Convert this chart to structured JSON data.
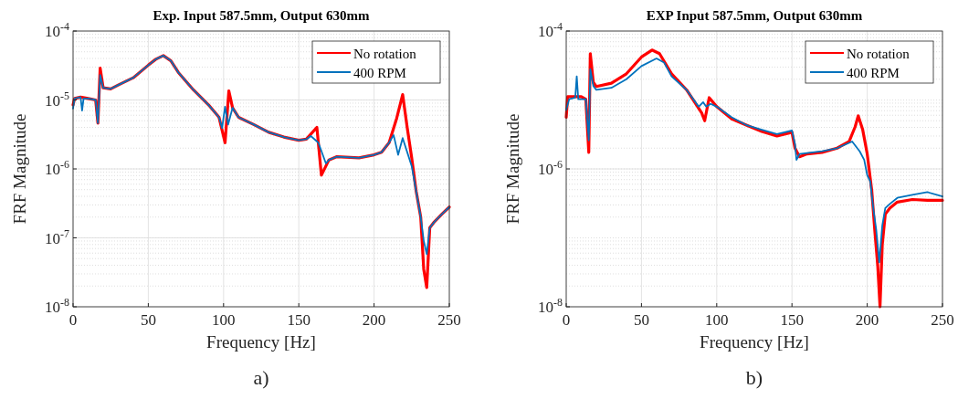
{
  "chart_data": [
    {
      "type": "line",
      "title": "Exp. Input 587.5mm, Output 630mm",
      "xlabel": "Frequency [Hz]",
      "ylabel": "FRF Magnitude",
      "annotations": [
        "a)"
      ],
      "log": "y",
      "grid": true,
      "legend": "top right",
      "line_style": "solid",
      "xlim": [
        0,
        250
      ],
      "ylim": [
        1e-08,
        0.0001
      ],
      "xticks": [
        0,
        50,
        100,
        150,
        200,
        250
      ],
      "yticks": [
        {
          "value": 1e-08,
          "label": "10$^{-8}$"
        },
        {
          "value": 1e-07,
          "label": "10$^{-7}$"
        },
        {
          "value": 1e-06,
          "label": "10$^{-6}$"
        },
        {
          "value": 1e-05,
          "label": "10$^{-5}$"
        },
        {
          "value": 0.0001,
          "label": "10$^{-4}$"
        }
      ],
      "series": [
        {
          "name": "No rotation",
          "color": "#ff0000",
          "x": [
            0,
            1,
            5,
            10,
            15,
            16.5,
            18,
            20,
            25,
            30,
            40,
            50,
            55,
            60,
            65,
            70,
            80,
            90,
            97,
            101,
            103.5,
            106,
            110,
            120,
            130,
            140,
            150,
            155,
            162,
            165,
            170,
            175,
            190,
            200,
            205,
            210,
            215,
            219,
            222,
            225,
            228,
            231,
            233,
            235,
            237,
            240,
            245,
            250
          ],
          "values": [
            8.5e-06,
            1.05e-05,
            1.1e-05,
            1.05e-05,
            1e-05,
            4.6e-06,
            2.9e-05,
            1.5e-05,
            1.45e-05,
            1.65e-05,
            2.1e-05,
            3.2e-05,
            3.9e-05,
            4.4e-05,
            3.7e-05,
            2.5e-05,
            1.4e-05,
            8.5e-06,
            5.6e-06,
            2.4e-06,
            1.35e-05,
            7.7e-06,
            5.6e-06,
            4.4e-06,
            3.4e-06,
            2.9e-06,
            2.6e-06,
            2.7e-06,
            4e-06,
            8.1e-07,
            1.35e-06,
            1.5e-06,
            1.45e-06,
            1.6e-06,
            1.75e-06,
            2.4e-06,
            5.4e-06,
            1.2e-05,
            4e-06,
            1.45e-06,
            4.7e-07,
            2e-07,
            3.5e-08,
            1.9e-08,
            1.4e-07,
            1.7e-07,
            2.2e-07,
            2.8e-07
          ]
        },
        {
          "name": "400 RPM",
          "color": "#0072bd",
          "x": [
            0,
            1,
            5,
            6,
            7,
            10,
            15,
            16.5,
            18,
            20,
            25,
            30,
            40,
            50,
            55,
            60,
            65,
            70,
            80,
            90,
            97,
            99,
            101,
            103,
            106,
            110,
            120,
            130,
            140,
            150,
            155,
            158,
            163,
            168,
            170,
            175,
            190,
            200,
            205,
            210,
            213,
            216,
            219,
            225,
            228,
            231,
            233,
            235,
            237,
            240,
            245,
            250
          ],
          "values": [
            7.5e-06,
            1.05e-05,
            1.1e-05,
            7e-06,
            1.05e-05,
            1.05e-05,
            1e-05,
            4.6e-06,
            2.3e-05,
            1.5e-05,
            1.45e-05,
            1.65e-05,
            2.1e-05,
            3.2e-05,
            3.9e-05,
            4.4e-05,
            3.7e-05,
            2.5e-05,
            1.4e-05,
            8.5e-06,
            5.6e-06,
            3.9e-06,
            8e-06,
            4.4e-06,
            7.7e-06,
            5.6e-06,
            4.4e-06,
            3.4e-06,
            2.9e-06,
            2.6e-06,
            2.7e-06,
            3e-06,
            2.4e-06,
            1.2e-06,
            1.35e-06,
            1.5e-06,
            1.45e-06,
            1.6e-06,
            1.75e-06,
            2.4e-06,
            3.1e-06,
            1.6e-06,
            2.8e-06,
            1.1e-06,
            4.7e-07,
            2e-07,
            9.1e-08,
            5.8e-08,
            1.4e-07,
            1.7e-07,
            2.2e-07,
            2.8e-07
          ]
        }
      ]
    },
    {
      "type": "line",
      "title": "EXP Input 587.5mm, Output 630mm",
      "xlabel": "Frequency [Hz]",
      "ylabel": "FRF Magnitude",
      "annotations": [
        "b)"
      ],
      "log": "y",
      "grid": true,
      "legend": "top right",
      "line_style": "solid",
      "xlim": [
        0,
        250
      ],
      "ylim": [
        1e-08,
        0.0001
      ],
      "xticks": [
        0,
        50,
        100,
        150,
        200,
        250
      ],
      "yticks": [
        {
          "value": 1e-08,
          "label": "10$^{-8}$"
        },
        {
          "value": 1e-06,
          "label": "10$^{-6}$"
        },
        {
          "value": 0.0001,
          "label": "10$^{-4}$"
        }
      ],
      "series": [
        {
          "name": "No rotation",
          "color": "#ff0000",
          "x": [
            0,
            1,
            10,
            13,
            15,
            16,
            18,
            20,
            30,
            40,
            50,
            57,
            62,
            70,
            80,
            90,
            92,
            95,
            100,
            110,
            120,
            130,
            140,
            150,
            152,
            155,
            160,
            170,
            180,
            188,
            192,
            194,
            197,
            200,
            203,
            205,
            207,
            208.5,
            210,
            212,
            215,
            220,
            230,
            240,
            250
          ],
          "values": [
            5.6e-06,
            1.12e-05,
            1.12e-05,
            1.03e-05,
            1.74e-06,
            4.7e-05,
            1.8e-05,
            1.57e-05,
            1.75e-05,
            2.4e-05,
            4.2e-05,
            5.3e-05,
            4.7e-05,
            2.4e-05,
            1.4e-05,
            6.5e-06,
            5e-06,
            1.08e-05,
            8e-06,
            5.3e-06,
            4.3e-06,
            3.5e-06,
            3e-06,
            3.4e-06,
            2e-06,
            1.5e-06,
            1.65e-06,
            1.74e-06,
            2e-06,
            2.5e-06,
            4.1e-06,
            5.9e-06,
            3.7e-06,
            1.65e-06,
            4.9e-07,
            1.3e-07,
            3.9e-08,
            1e-08,
            8e-08,
            2.2e-07,
            2.7e-07,
            3.3e-07,
            3.6e-07,
            3.5e-07,
            3.5e-07
          ]
        },
        {
          "name": "400 RPM",
          "color": "#0072bd",
          "x": [
            0,
            2,
            6,
            7,
            8,
            13,
            15,
            16,
            18,
            20,
            30,
            40,
            50,
            60,
            65,
            70,
            80,
            88,
            91,
            93,
            96,
            100,
            110,
            120,
            130,
            140,
            150,
            152,
            153,
            155,
            170,
            180,
            190,
            195,
            198,
            200,
            202,
            204,
            206,
            208,
            210,
            212,
            215,
            220,
            230,
            240,
            250
          ],
          "values": [
            7.2e-06,
            1.03e-05,
            1.08e-05,
            2.2e-05,
            1.03e-05,
            1.03e-05,
            2.6e-06,
            2.8e-05,
            1.6e-05,
            1.4e-05,
            1.5e-05,
            2e-05,
            3.1e-05,
            4e-05,
            3.5e-05,
            2.2e-05,
            1.4e-05,
            8e-06,
            9.3e-06,
            8e-06,
            8.8e-06,
            8e-06,
            5.6e-06,
            4.3e-06,
            3.7e-06,
            3.2e-06,
            3.6e-06,
            2.3e-06,
            1.35e-06,
            1.65e-06,
            1.8e-06,
            2e-06,
            2.5e-06,
            1.8e-06,
            1.35e-06,
            8.1e-07,
            6.6e-07,
            2.7e-07,
            1.3e-07,
            4.4e-08,
            1.5e-07,
            2.7e-07,
            3.1e-07,
            3.8e-07,
            4.2e-07,
            4.6e-07,
            4e-07
          ]
        }
      ]
    }
  ]
}
